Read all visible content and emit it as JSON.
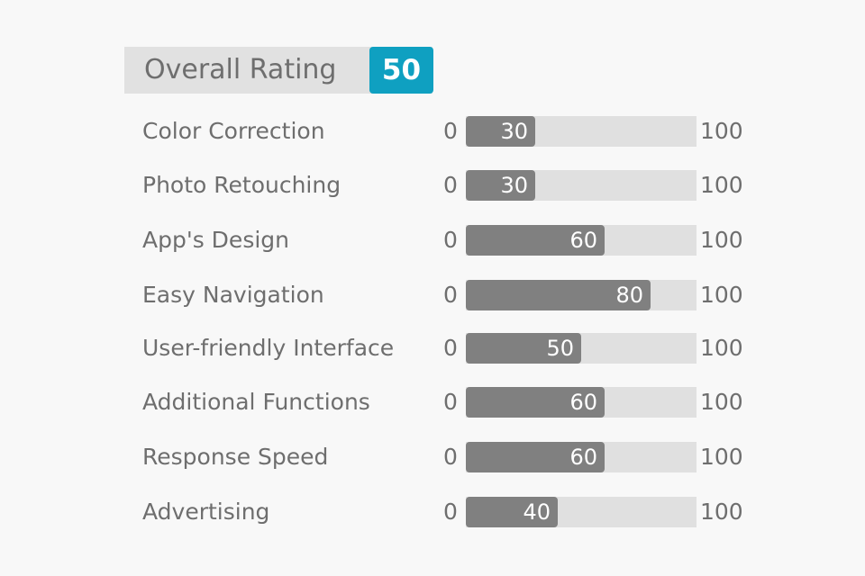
{
  "header": {
    "title": "Overall Rating",
    "score": "50",
    "accent_color": "#0fa0c1"
  },
  "chart_data": {
    "type": "bar",
    "orientation": "horizontal",
    "xlim": [
      0,
      100
    ],
    "min_label": "0",
    "max_label": "100",
    "categories": [
      "Color Correction",
      "Photo Retouching",
      "App's Design",
      "Easy Navigation",
      "User-friendly Interface",
      "Additional Functions",
      "Response Speed",
      "Advertising"
    ],
    "values": [
      30,
      30,
      60,
      80,
      50,
      60,
      60,
      40
    ],
    "bar_color": "#808080",
    "track_color": "#e0e0e0"
  }
}
